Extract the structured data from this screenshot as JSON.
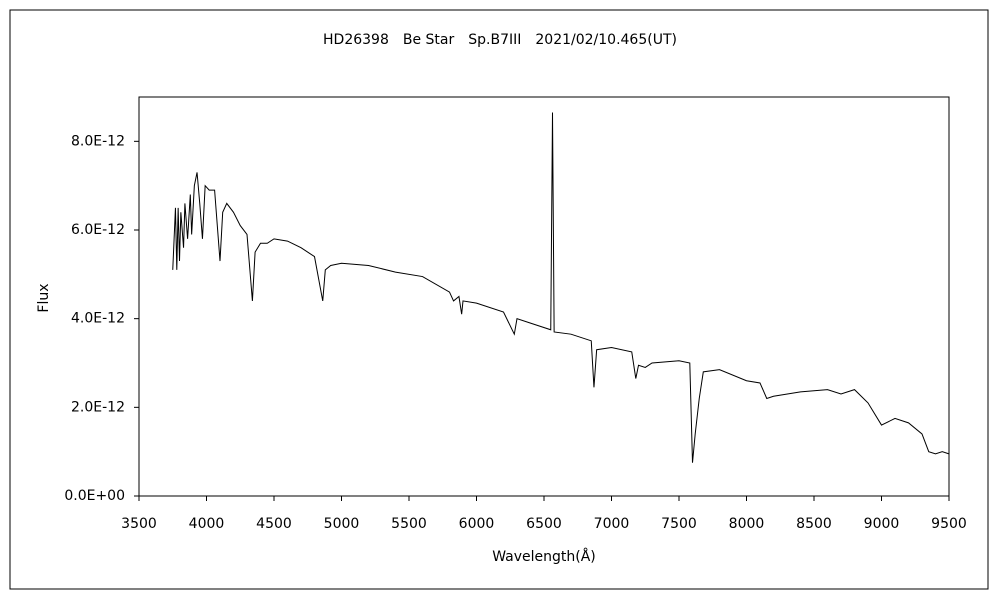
{
  "chart_data": {
    "type": "line",
    "title": "HD26398　Be Star　Sp.B7III　2021/02/10.465(UT)",
    "x_label": "Wavelength(Å)",
    "y_label": "Flux",
    "xlim": [
      3500,
      9500
    ],
    "xticks": [
      3500,
      4000,
      4500,
      5000,
      5500,
      6000,
      6500,
      7000,
      7500,
      8000,
      8500,
      9000,
      9500
    ],
    "ylim": [
      0,
      9e-12
    ],
    "yticks": [
      {
        "value": 0,
        "label": "0.0E+00"
      },
      {
        "value": 2e-12,
        "label": "2.0E-12"
      },
      {
        "value": 4e-12,
        "label": "4.0E-12"
      },
      {
        "value": 6e-12,
        "label": "6.0E-12"
      },
      {
        "value": 8e-12,
        "label": "8.0E-12"
      }
    ],
    "grid": false,
    "x": [
      3750,
      3770,
      3780,
      3790,
      3800,
      3810,
      3830,
      3840,
      3860,
      3880,
      3890,
      3910,
      3930,
      3950,
      3970,
      3990,
      4020,
      4060,
      4100,
      4120,
      4150,
      4200,
      4250,
      4300,
      4340,
      4360,
      4400,
      4450,
      4500,
      4600,
      4700,
      4800,
      4861,
      4880,
      4920,
      5000,
      5200,
      5400,
      5600,
      5800,
      5830,
      5870,
      5890,
      5900,
      6000,
      6200,
      6280,
      6300,
      6400,
      6550,
      6563,
      6575,
      6700,
      6850,
      6870,
      6890,
      7000,
      7150,
      7180,
      7200,
      7250,
      7300,
      7500,
      7580,
      7600,
      7620,
      7650,
      7680,
      7800,
      8000,
      8100,
      8150,
      8200,
      8400,
      8600,
      8700,
      8800,
      8900,
      9000,
      9100,
      9200,
      9300,
      9350,
      9400,
      9450,
      9500
    ],
    "series": [
      {
        "name": "Flux",
        "color": "#000000",
        "values": [
          5.1e-12,
          6.5e-12,
          5.1e-12,
          6.5e-12,
          5.3e-12,
          6.4e-12,
          5.6e-12,
          6.6e-12,
          5.8e-12,
          6.8e-12,
          5.9e-12,
          7e-12,
          7.3e-12,
          6.6e-12,
          5.8e-12,
          7e-12,
          6.9e-12,
          6.9e-12,
          5.3e-12,
          6.4e-12,
          6.6e-12,
          6.4e-12,
          6.1e-12,
          5.9e-12,
          4.4e-12,
          5.5e-12,
          5.7e-12,
          5.7e-12,
          5.8e-12,
          5.75e-12,
          5.6e-12,
          5.4e-12,
          4.4e-12,
          5.1e-12,
          5.2e-12,
          5.25e-12,
          5.2e-12,
          5.05e-12,
          4.95e-12,
          4.6e-12,
          4.4e-12,
          4.5e-12,
          4.1e-12,
          4.4e-12,
          4.35e-12,
          4.15e-12,
          3.65e-12,
          4e-12,
          3.9e-12,
          3.75e-12,
          8.65e-12,
          3.7e-12,
          3.65e-12,
          3.5e-12,
          2.45e-12,
          3.3e-12,
          3.35e-12,
          3.25e-12,
          2.65e-12,
          2.95e-12,
          2.9e-12,
          3e-12,
          3.05e-12,
          3e-12,
          7.5e-13,
          1.4e-12,
          2.2e-12,
          2.8e-12,
          2.85e-12,
          2.6e-12,
          2.55e-12,
          2.2e-12,
          2.25e-12,
          2.35e-12,
          2.4e-12,
          2.3e-12,
          2.4e-12,
          2.1e-12,
          1.6e-12,
          1.75e-12,
          1.65e-12,
          1.4e-12,
          1e-12,
          9.5e-13,
          1e-12,
          9.5e-13
        ]
      }
    ]
  }
}
